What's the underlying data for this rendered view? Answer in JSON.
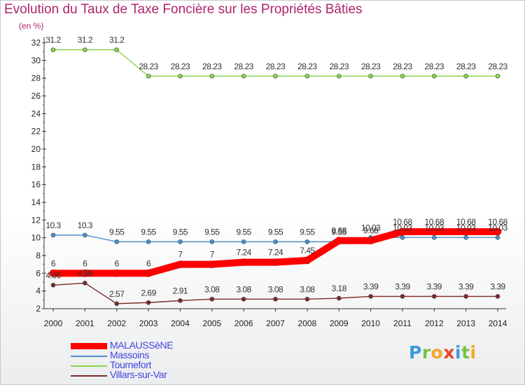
{
  "title": "Evolution du Taux de Taxe Foncière sur les Propriétés Bâties",
  "unit_label": "(en %)",
  "logo_text": "Proxiti",
  "chart_data": {
    "type": "line",
    "title": "Evolution du Taux de Taxe Foncière sur les Propriétés Bâties",
    "ylabel": "(en %)",
    "xlabel": "",
    "x": [
      "2000",
      "2001",
      "2002",
      "2003",
      "2004",
      "2005",
      "2006",
      "2007",
      "2008",
      "2009",
      "2010",
      "2011",
      "2012",
      "2013",
      "2014"
    ],
    "ylim": [
      2,
      32
    ],
    "yticks": [
      "2",
      "4",
      "6",
      "8",
      "10",
      "12",
      "14",
      "16",
      "18",
      "20",
      "22",
      "24",
      "26",
      "28",
      "30",
      "32"
    ],
    "grid": false,
    "legend_position": "bottom-left",
    "series": [
      {
        "name": "MALAUSSèNE",
        "color": "#ff0000",
        "values": [
          6,
          6,
          6,
          6,
          7,
          7,
          7.24,
          7.24,
          7.45,
          9.68,
          9.68,
          10.68,
          10.68,
          10.68,
          10.68
        ],
        "labels": [
          "6",
          "6",
          "6",
          "6",
          "7",
          "7",
          "7.24",
          "7.24",
          "7.45",
          "9.68",
          "9.68",
          "10.68",
          "10.68",
          "10.68",
          "10.68"
        ]
      },
      {
        "name": "Massoins",
        "color": "#4d8fcb",
        "values": [
          10.3,
          10.3,
          9.55,
          9.55,
          9.55,
          9.55,
          9.55,
          9.55,
          9.55,
          9.55,
          10.03,
          10.03,
          10.03,
          10.03,
          10.03
        ],
        "labels": [
          "10.3",
          "10.3",
          "9.55",
          "9.55",
          "9.55",
          "9.55",
          "9.55",
          "9.55",
          "9.55",
          "9.55",
          "10.03",
          "10.03",
          "10.03",
          "10.03",
          "10.03"
        ]
      },
      {
        "name": "Tournefort",
        "color": "#8bd44b",
        "values": [
          31.2,
          31.2,
          31.2,
          28.23,
          28.23,
          28.23,
          28.23,
          28.23,
          28.23,
          28.23,
          28.23,
          28.23,
          28.23,
          28.23,
          28.23
        ],
        "labels": [
          "31.2",
          "31.2",
          "31.2",
          "28.23",
          "28.23",
          "28.23",
          "28.23",
          "28.23",
          "28.23",
          "28.23",
          "28.23",
          "28.23",
          "28.23",
          "28.23",
          "28.23"
        ]
      },
      {
        "name": "Villars-sur-Var",
        "color": "#7a2a2a",
        "values": [
          4.66,
          4.89,
          2.57,
          2.69,
          2.91,
          3.08,
          3.08,
          3.08,
          3.08,
          3.18,
          3.39,
          3.39,
          3.39,
          3.39,
          3.39
        ],
        "labels": [
          "4.66",
          "4.89",
          "2.57",
          "2.69",
          "2.91",
          "3.08",
          "3.08",
          "3.08",
          "3.08",
          "3.18",
          "3.39",
          "3.39",
          "3.39",
          "3.39",
          "3.39"
        ]
      }
    ]
  }
}
